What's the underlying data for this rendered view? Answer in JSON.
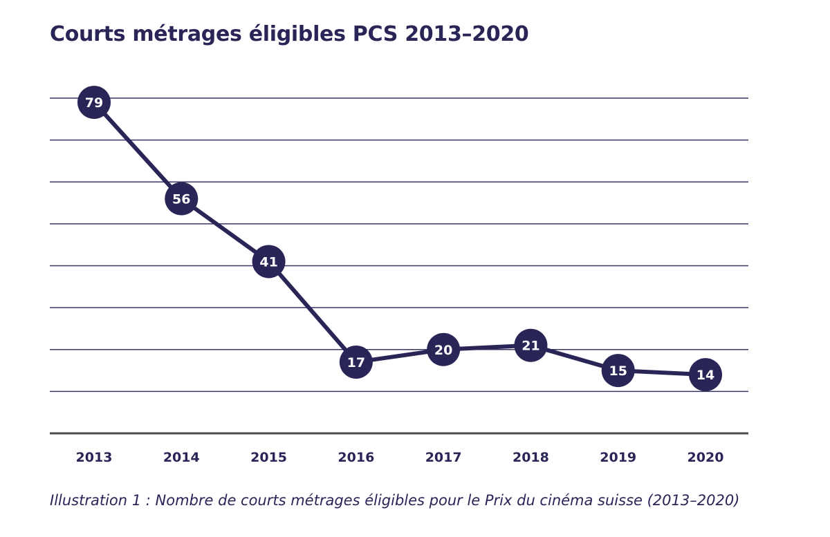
{
  "title": "Courts métrages éligibles PCS 2013–2020",
  "caption": "Illustration 1 : Nombre de courts métrages éligibles pour le Prix du cinéma suisse (2013–2020)",
  "colors": {
    "series": "#2a2557",
    "grid": "#3a3565",
    "axis": "#4a4a4a",
    "label_text": "#ffffff"
  },
  "chart_data": {
    "type": "line",
    "title": "Courts métrages éligibles PCS 2013–2020",
    "x": [
      "2013",
      "2014",
      "2015",
      "2016",
      "2017",
      "2018",
      "2019",
      "2020"
    ],
    "series": [
      {
        "values": [
          79,
          56,
          41,
          17,
          20,
          21,
          15,
          14
        ]
      }
    ],
    "xlabel": "",
    "ylabel": "",
    "ylim": [
      0,
      80
    ],
    "grid": true,
    "legend": "none"
  }
}
